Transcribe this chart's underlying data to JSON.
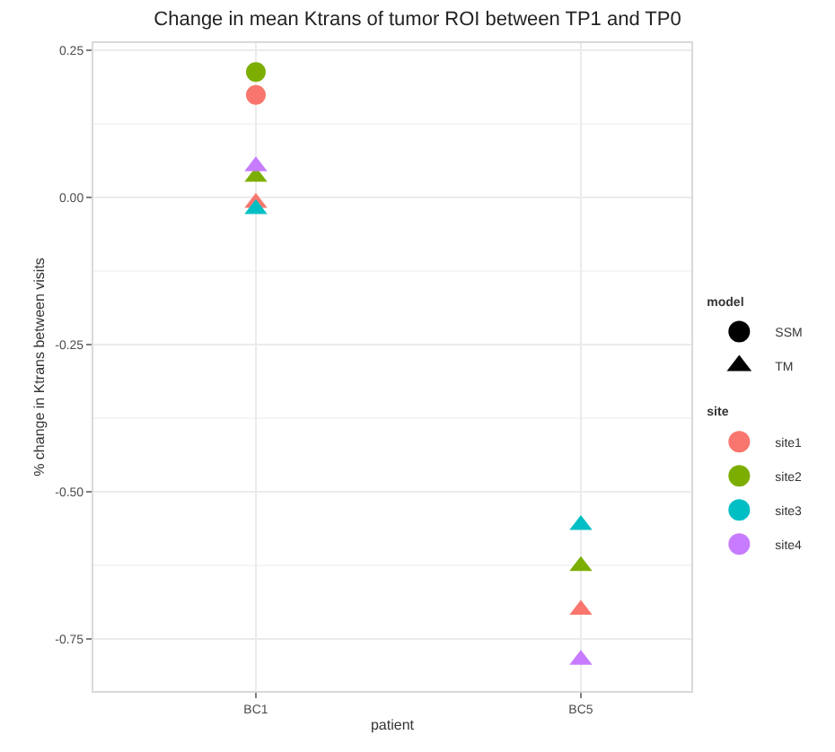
{
  "chart_data": {
    "type": "scatter",
    "title": "Change in mean Ktrans of tumor ROI between TP1 and TP0",
    "xlabel": "patient",
    "ylabel": "% change in Ktrans between visits",
    "categories": [
      "BC1",
      "BC5"
    ],
    "legend_title": [
      "model",
      "site"
    ],
    "series": [
      {
        "name": "SSM",
        "color": "#000000",
        "marker": "circle",
        "values": [
          null,
          null
        ]
      },
      {
        "name": "TM",
        "color": "#000000",
        "marker": "triangle",
        "values": [
          null,
          null
        ]
      },
      {
        "name": "site1",
        "color": "#f8766d",
        "marker": "circle",
        "values": [
          null,
          null
        ]
      },
      {
        "name": "site2",
        "color": "#7cae00",
        "marker": "circle",
        "values": [
          null,
          null
        ]
      },
      {
        "name": "site3",
        "color": "#00bfc4",
        "marker": "circle",
        "values": [
          null,
          null
        ]
      },
      {
        "name": "site4",
        "color": "#c77cff",
        "marker": "circle",
        "values": [
          null,
          null
        ]
      },
      {
        "color": "#f8766d",
        "marker": "circle",
        "x": [
          "BC1"
        ],
        "values": [
          0.174
        ]
      },
      {
        "color": "#f8766d",
        "marker": "triangle",
        "x": [
          "BC1",
          "BC5"
        ],
        "values": [
          -0.009,
          -0.7
        ]
      },
      {
        "color": "#7cae00",
        "marker": "circle",
        "x": [
          "BC1"
        ],
        "values": [
          0.213
        ]
      },
      {
        "color": "#7cae00",
        "marker": "triangle",
        "x": [
          "BC1",
          "BC5"
        ],
        "values": [
          0.035,
          -0.626
        ]
      },
      {
        "color": "#00bfc4",
        "marker": "triangle",
        "x": [
          "BC1",
          "BC5"
        ],
        "values": [
          -0.02,
          -0.556
        ]
      },
      {
        "color": "#c77cff",
        "marker": "triangle",
        "x": [
          "BC1",
          "BC5"
        ],
        "values": [
          0.053,
          -0.785
        ]
      }
    ],
    "ylim": [
      -0.838,
      0.262
    ],
    "yticks": [
      {
        "value": 0.25,
        "label": "0.25"
      },
      {
        "value": 0.0,
        "label": "0.00"
      },
      {
        "value": -0.25,
        "label": "-0.25"
      },
      {
        "value": -0.5,
        "label": "-0.50"
      },
      {
        "value": -0.75,
        "label": "-0.75"
      }
    ],
    "grid": true,
    "legend": "right"
  }
}
